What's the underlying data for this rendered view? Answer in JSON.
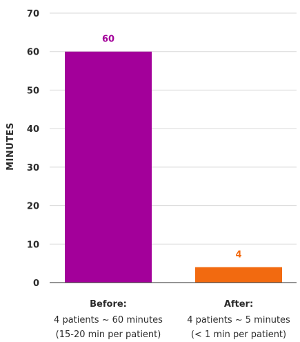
{
  "chart_data": {
    "type": "bar",
    "ylabel": "MINUTES",
    "ylim": [
      0,
      70
    ],
    "yticks": [
      0,
      10,
      20,
      30,
      40,
      50,
      60,
      70
    ],
    "grid": true,
    "categories": [
      {
        "title": "Before:",
        "line1": "4 patients ~ 60 minutes",
        "line2": "(15-20 min per patient)"
      },
      {
        "title": "After:",
        "line1": "4 patients ~ 5 minutes",
        "line2": "(< 1 min per patient)"
      }
    ],
    "values": [
      60,
      4
    ],
    "data_labels": [
      "60",
      "4"
    ],
    "colors": [
      "#a3009a",
      "#f26a10"
    ]
  }
}
